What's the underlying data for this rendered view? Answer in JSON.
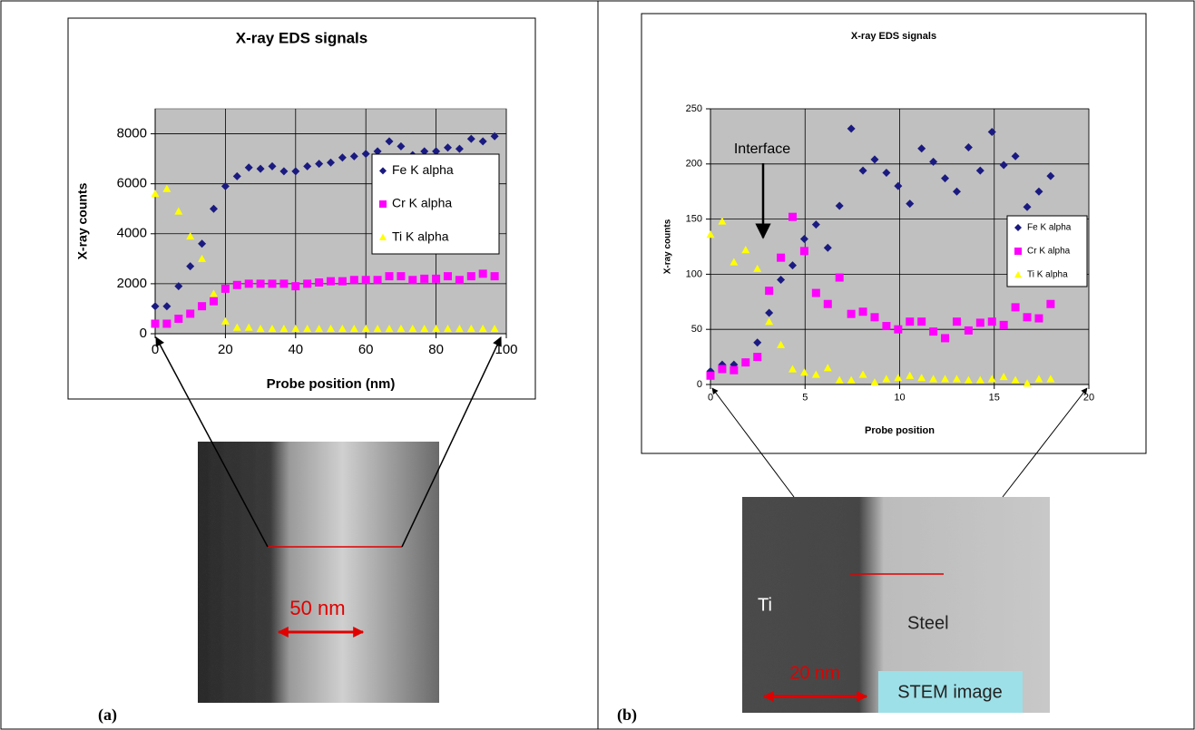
{
  "chart_data": [
    {
      "type": "scatter",
      "title": "X-ray EDS signals",
      "x_label": "Probe position (nm)",
      "y_label": "X-ray counts",
      "x": [
        0,
        3.33,
        6.67,
        10,
        13.33,
        16.67,
        20,
        23.33,
        26.67,
        30,
        33.33,
        36.67,
        40,
        43.33,
        46.67,
        50,
        53.33,
        56.67,
        60,
        63.33,
        66.67,
        70,
        73.33,
        76.67,
        80,
        83.33,
        86.67,
        90,
        93.33,
        96.67
      ],
      "series": [
        {
          "name": "Fe K alpha",
          "color": "#1a1a80",
          "values": [
            1100,
            1100,
            1900,
            2700,
            3600,
            5000,
            5900,
            6300,
            6650,
            6600,
            6700,
            6500,
            6500,
            6700,
            6800,
            6850,
            7050,
            7100,
            7200,
            7300,
            7700,
            7500,
            7150,
            7300,
            7300,
            7450,
            7400,
            7800,
            7700,
            7900
          ]
        },
        {
          "name": "Cr K alpha",
          "color": "#ff00ff",
          "values": [
            400,
            400,
            600,
            800,
            1100,
            1300,
            1800,
            1950,
            2000,
            2000,
            2000,
            2000,
            1900,
            2000,
            2050,
            2100,
            2100,
            2150,
            2150,
            2150,
            2300,
            2300,
            2150,
            2200,
            2200,
            2300,
            2150,
            2300,
            2400,
            2300
          ]
        },
        {
          "name": "Ti K alpha",
          "color": "#ffff00",
          "values": [
            5600,
            5800,
            4900,
            3900,
            3000,
            1600,
            500,
            250,
            250,
            200,
            200,
            200,
            200,
            200,
            200,
            200,
            200,
            200,
            200,
            200,
            200,
            200,
            200,
            200,
            200,
            200,
            200,
            200,
            200,
            200
          ]
        }
      ],
      "xlim": [
        0,
        100
      ],
      "xticks": [
        0,
        20,
        40,
        60,
        80,
        100
      ],
      "ylim": [
        0,
        9000
      ],
      "yticks": [
        0,
        2000,
        4000,
        6000,
        8000
      ],
      "grid": true,
      "panel_label": "(a)",
      "scale_bar": "50 nm",
      "image_labels": []
    },
    {
      "type": "scatter",
      "title": "X-ray EDS signals",
      "x_label": "Probe position",
      "y_label": "X-ray counts",
      "x": [
        0,
        0.62,
        1.24,
        1.86,
        2.48,
        3.1,
        3.72,
        4.34,
        4.96,
        5.58,
        6.2,
        6.82,
        7.44,
        8.06,
        8.68,
        9.3,
        9.92,
        10.54,
        11.16,
        11.78,
        12.4,
        13.02,
        13.64,
        14.26,
        14.88,
        15.5,
        16.12,
        16.74,
        17.36,
        17.98
      ],
      "series": [
        {
          "name": "Fe K alpha",
          "color": "#1a1a80",
          "values": [
            12,
            18,
            18,
            20,
            38,
            65,
            95,
            108,
            132,
            145,
            124,
            162,
            232,
            194,
            204,
            192,
            180,
            164,
            214,
            202,
            187,
            175,
            215,
            194,
            229,
            199,
            207,
            161,
            175,
            189
          ]
        },
        {
          "name": "Cr K alpha",
          "color": "#ff00ff",
          "values": [
            8,
            14,
            13,
            20,
            25,
            85,
            115,
            152,
            121,
            83,
            73,
            97,
            64,
            66,
            61,
            53,
            50,
            57,
            57,
            48,
            42,
            57,
            49,
            56,
            57,
            54,
            70,
            61,
            60,
            73
          ]
        },
        {
          "name": "Ti K alpha",
          "color": "#ffff00",
          "values": [
            136,
            148,
            111,
            122,
            105,
            57,
            36,
            14,
            11,
            9,
            15,
            4,
            4,
            9,
            2,
            5,
            6,
            8,
            6,
            5,
            5,
            5,
            4,
            4,
            5,
            7,
            4,
            1,
            5,
            5
          ]
        }
      ],
      "xlim": [
        0,
        20
      ],
      "xticks": [
        0,
        5,
        10,
        15,
        20
      ],
      "ylim": [
        0,
        250
      ],
      "yticks": [
        0,
        50,
        100,
        150,
        200,
        250
      ],
      "grid": true,
      "annotation": "Interface",
      "panel_label": "(b)",
      "scale_bar": "20 nm",
      "image_labels": [
        "Ti",
        "Steel",
        "STEM image"
      ]
    }
  ]
}
